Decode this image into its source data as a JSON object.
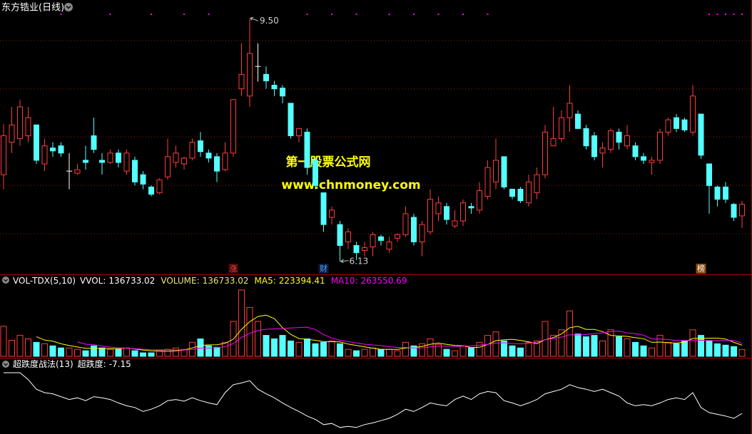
{
  "chart_data": [
    {
      "type": "candlestick",
      "title": "东方锆业(日线)",
      "open": [
        7.33,
        7.78,
        7.83,
        7.87,
        8.02,
        7.48,
        7.7,
        7.73,
        7.38,
        7.35,
        7.53,
        7.87,
        7.53,
        7.5,
        7.63,
        7.38,
        7.53,
        7.33,
        7.16,
        7.08,
        7.3,
        7.5,
        7.48,
        7.56,
        7.8,
        7.63,
        7.58,
        7.4,
        7.63,
        8.52,
        8.42,
        8.83,
        8.72,
        8.57,
        8.53,
        8.32,
        7.87,
        7.92,
        7.53,
        7.08,
        6.74,
        6.64,
        6.4,
        6.35,
        6.28,
        6.33,
        6.47,
        6.3,
        6.45,
        6.5,
        6.74,
        6.4,
        6.54,
        6.79,
        6.89,
        6.62,
        6.69,
        6.89,
        6.84,
        7.03,
        7.23,
        7.58,
        7.13,
        7.13,
        6.94,
        7.08,
        7.33,
        7.73,
        7.83,
        8.12,
        8.17,
        7.97,
        7.87,
        7.63,
        7.68,
        7.92,
        7.73,
        7.73,
        7.58,
        7.5,
        7.53,
        7.92,
        8.12,
        8.09,
        7.92,
        8.17,
        7.48,
        7.16,
        7.16,
        6.92,
        6.76
      ],
      "high": [
        8.03,
        8.27,
        8.37,
        8.27,
        8.02,
        7.83,
        7.78,
        7.78,
        7.63,
        7.48,
        7.73,
        8.12,
        7.63,
        7.68,
        7.68,
        7.68,
        7.58,
        7.38,
        7.18,
        7.28,
        7.83,
        7.73,
        7.58,
        7.83,
        7.92,
        7.68,
        7.63,
        7.78,
        8.37,
        9.15,
        9.5,
        9.15,
        8.83,
        8.63,
        8.57,
        8.32,
        7.97,
        7.97,
        7.58,
        7.08,
        6.89,
        6.69,
        6.59,
        6.4,
        6.4,
        6.54,
        6.5,
        6.47,
        6.52,
        6.89,
        6.79,
        6.69,
        7.13,
        7.03,
        6.94,
        6.84,
        6.99,
        6.94,
        7.23,
        7.53,
        7.83,
        7.58,
        7.13,
        7.16,
        7.33,
        7.43,
        8.02,
        8.27,
        8.22,
        8.57,
        8.22,
        8.02,
        7.92,
        7.78,
        7.97,
        7.97,
        8.02,
        7.78,
        7.63,
        7.58,
        7.97,
        8.12,
        8.17,
        8.12,
        8.57,
        8.17,
        7.48,
        7.18,
        7.23,
        6.94,
        6.97
      ],
      "low": [
        7.13,
        7.63,
        7.73,
        7.78,
        7.48,
        7.38,
        7.58,
        7.58,
        7.13,
        7.33,
        7.4,
        7.63,
        7.33,
        7.48,
        7.43,
        7.33,
        7.18,
        7.13,
        7.03,
        7.06,
        7.26,
        7.43,
        7.4,
        7.53,
        7.58,
        7.5,
        7.23,
        7.38,
        7.58,
        8.42,
        8.27,
        8.62,
        8.52,
        8.42,
        8.32,
        7.83,
        7.78,
        7.33,
        7.13,
        6.54,
        6.64,
        6.13,
        6.3,
        6.15,
        6.2,
        6.2,
        6.35,
        6.25,
        6.4,
        6.47,
        6.35,
        6.2,
        6.5,
        6.69,
        6.64,
        6.59,
        6.62,
        6.79,
        6.79,
        6.99,
        7.13,
        7.13,
        6.99,
        6.94,
        6.89,
        6.99,
        7.28,
        7.73,
        7.78,
        7.92,
        7.97,
        7.68,
        7.53,
        7.43,
        7.63,
        7.68,
        7.68,
        7.53,
        7.48,
        7.33,
        7.48,
        7.87,
        7.92,
        7.92,
        7.87,
        7.55,
        6.79,
        6.89,
        6.94,
        6.69,
        6.59
      ],
      "close": [
        7.87,
        8.02,
        8.27,
        8.12,
        7.53,
        7.73,
        7.66,
        7.63,
        7.38,
        7.4,
        7.5,
        7.68,
        7.5,
        7.63,
        7.5,
        7.63,
        7.23,
        7.2,
        7.06,
        7.26,
        7.58,
        7.63,
        7.56,
        7.78,
        7.65,
        7.56,
        7.38,
        7.63,
        8.37,
        8.72,
        9.01,
        8.83,
        8.63,
        8.52,
        8.42,
        7.87,
        7.97,
        7.43,
        7.18,
        6.64,
        6.84,
        6.35,
        6.54,
        6.25,
        6.32,
        6.5,
        6.42,
        6.4,
        6.5,
        6.79,
        6.4,
        6.64,
        6.99,
        6.94,
        6.71,
        6.69,
        6.94,
        6.87,
        7.11,
        7.43,
        7.53,
        7.16,
        7.03,
        6.97,
        7.23,
        7.33,
        7.92,
        7.83,
        8.12,
        8.32,
        7.97,
        7.73,
        7.58,
        7.7,
        7.94,
        7.78,
        7.87,
        7.58,
        7.53,
        7.53,
        7.92,
        8.09,
        7.97,
        7.95,
        8.42,
        7.6,
        7.18,
        6.99,
        6.99,
        6.74,
        6.92
      ],
      "ylim": [
        5.95,
        9.75
      ],
      "up_color": "#ff3c3c",
      "down_color": "#54ffff",
      "doji_color": "#ffffff",
      "max_label": "9.50",
      "min_label": "6.13",
      "events": [
        {
          "index": 28,
          "label": "涨",
          "color": "#ff4040",
          "bg": "#3a0a0a"
        },
        {
          "index": 39,
          "label": "财",
          "color": "#5aa0ff",
          "bg": "#0a1a3a"
        },
        {
          "index": 85,
          "label": "榜",
          "color": "#ffffff",
          "bg": "#8a4a10"
        }
      ],
      "signals": [
        7,
        13,
        18,
        22,
        25,
        37,
        40,
        43,
        47,
        50,
        53,
        56,
        59,
        86,
        87,
        88,
        89,
        90
      ],
      "signal_color": "#ff00ff",
      "watermark": [
        "第一股票公式网",
        "www.chnmoney.com"
      ],
      "watermark_color": "#ffff00"
    },
    {
      "type": "volume",
      "title": "VOL-TDX(5,10)",
      "vvol_label": "VVOL:",
      "ylim": [
        0,
        1400000
      ],
      "series": [
        {
          "name": "VOLUME:",
          "color": "#e8e870",
          "values": [
            602000,
            322000,
            420000,
            350000,
            280000,
            252000,
            210000,
            168000,
            168000,
            140000,
            112000,
            210000,
            168000,
            140000,
            140000,
            168000,
            112000,
            70000,
            70000,
            112000,
            140000,
            168000,
            140000,
            280000,
            350000,
            210000,
            182000,
            280000,
            700000,
            1330000,
            980000,
            700000,
            420000,
            350000,
            420000,
            308000,
            280000,
            350000,
            252000,
            280000,
            308000,
            252000,
            140000,
            112000,
            140000,
            168000,
            140000,
            140000,
            112000,
            280000,
            210000,
            252000,
            350000,
            238000,
            140000,
            112000,
            210000,
            168000,
            280000,
            420000,
            490000,
            308000,
            210000,
            168000,
            280000,
            308000,
            700000,
            420000,
            532000,
            910000,
            448000,
            392000,
            420000,
            308000,
            532000,
            392000,
            350000,
            280000,
            210000,
            168000,
            420000,
            280000,
            252000,
            308000,
            532000,
            420000,
            308000,
            252000,
            224000,
            196000,
            136733.02
          ]
        },
        {
          "name": "MA5:",
          "color": "#ffff00",
          "values": [
            null,
            null,
            null,
            null,
            394800,
            324800,
            302400,
            252000,
            215600,
            187600,
            159600,
            159600,
            159600,
            154000,
            154000,
            165200,
            145600,
            126000,
            112000,
            106400,
            100800,
            112000,
            126000,
            168000,
            215600,
            229600,
            232400,
            260400,
            344400,
            540400,
            694400,
            798000,
            826000,
            756000,
            574000,
            439600,
            355600,
            341600,
            322000,
            294000,
            294000,
            288400,
            246400,
            218400,
            190400,
            162400,
            140000,
            140000,
            140000,
            168000,
            176400,
            198800,
            240800,
            266000,
            238000,
            218400,
            210000,
            173600,
            182000,
            238000,
            313600,
            333200,
            341600,
            319200,
            291200,
            254800,
            333200,
            375200,
            448000,
            574000,
            602000,
            540400,
            540400,
            495600,
            420000,
            408800,
            400400,
            372400,
            352800,
            280000,
            285600,
            271600,
            266000,
            285600,
            358400,
            358400,
            364000,
            364000,
            347200,
            280000,
            223394.41
          ]
        },
        {
          "name": "MA10:",
          "color": "#ff00ff",
          "values": [
            null,
            null,
            null,
            null,
            null,
            null,
            null,
            null,
            null,
            291200,
            242200,
            231000,
            205800,
            184800,
            170800,
            162400,
            152600,
            142800,
            133000,
            130200,
            133000,
            128800,
            126000,
            140000,
            161000,
            165200,
            172200,
            193200,
            256200,
            378000,
            462000,
            515200,
            543200,
            550200,
            557200,
            567000,
            576800,
            583800,
            539000,
            434000,
            366800,
            322000,
            294000,
            270200,
            242200,
            228200,
            214200,
            193200,
            179200,
            179200,
            169400,
            169400,
            190400,
            203000,
            203000,
            197400,
            204400,
            207200,
            224000,
            238000,
            266000,
            271600,
            257600,
            250600,
            264600,
            284200,
            333200,
            358400,
            383600,
            432600,
            428400,
            436800,
            457800,
            471800,
            497000,
            505400,
            470400,
            456400,
            424200,
            350000,
            347200,
            336000,
            319200,
            319200,
            319200,
            322000,
            317800,
            315000,
            316400,
            319200,
            263550.69
          ]
        }
      ]
    },
    {
      "type": "line",
      "title": "超跌度战法(13)",
      "ylim": [
        -10.5,
        1
      ],
      "series": [
        {
          "name": "超跌度:",
          "color": "#ffffff",
          "values": [
            0,
            0,
            0,
            -1.2,
            -2.9,
            -3.5,
            -3.7,
            -4.2,
            -4.7,
            -4.4,
            -4.9,
            -4.2,
            -4.4,
            -4.7,
            -5.3,
            -5.8,
            -6.1,
            -6.8,
            -6.4,
            -5.8,
            -4.9,
            -4.7,
            -5.0,
            -4.4,
            -4.9,
            -5.3,
            -5.6,
            -3.5,
            -2.1,
            -1.8,
            -1.4,
            -2.9,
            -3.7,
            -4.4,
            -5.3,
            -6.1,
            -6.8,
            -7.6,
            -8.2,
            -9.1,
            -8.9,
            -9.6,
            -9.4,
            -9.6,
            -9.1,
            -8.8,
            -8.4,
            -8.0,
            -7.3,
            -6.4,
            -6.8,
            -6.1,
            -5.3,
            -5.6,
            -5.8,
            -4.7,
            -4.1,
            -4.7,
            -3.7,
            -3.3,
            -3.5,
            -4.9,
            -5.3,
            -5.8,
            -5.3,
            -4.7,
            -3.7,
            -3.3,
            -2.9,
            -2.1,
            -2.6,
            -2.9,
            -3.3,
            -2.9,
            -3.5,
            -4.1,
            -5.3,
            -5.8,
            -5.6,
            -5.8,
            -5.3,
            -4.7,
            -4.4,
            -4.7,
            -3.5,
            -6.1,
            -7.0,
            -7.3,
            -7.6,
            -8.0,
            -7.15
          ]
        }
      ]
    }
  ]
}
